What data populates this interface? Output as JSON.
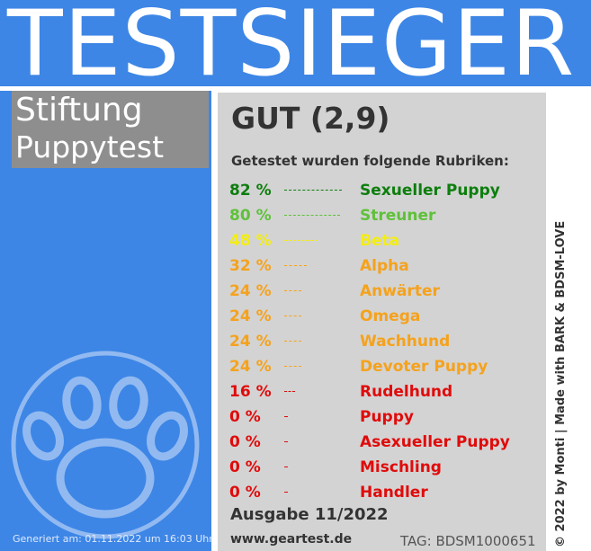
{
  "banner": {
    "title": "TESTSIEGER"
  },
  "brand": {
    "line1": "Stiftung",
    "line2": "Puppytest"
  },
  "result": {
    "grade": "GUT (2,9)",
    "intro": "Getestet wurden folgende Rubriken:"
  },
  "categories": [
    {
      "percent_label": "82 %",
      "name": "Sexueller Puppy",
      "value": 82,
      "color": "#0d7e0d"
    },
    {
      "percent_label": "80 %",
      "name": "Streuner",
      "value": 80,
      "color": "#5fc13a"
    },
    {
      "percent_label": "48 %",
      "name": "Beta",
      "value": 48,
      "color": "#f4ee10"
    },
    {
      "percent_label": "32 %",
      "name": "Alpha",
      "value": 32,
      "color": "#f5a21c"
    },
    {
      "percent_label": "24 %",
      "name": "Anwärter",
      "value": 24,
      "color": "#f5a21c"
    },
    {
      "percent_label": "24 %",
      "name": "Omega",
      "value": 24,
      "color": "#f5a21c"
    },
    {
      "percent_label": "24 %",
      "name": "Wachhund",
      "value": 24,
      "color": "#f5a21c"
    },
    {
      "percent_label": "24 %",
      "name": "Devoter Puppy",
      "value": 24,
      "color": "#f5a21c"
    },
    {
      "percent_label": "16 %",
      "name": "Rudelhund",
      "value": 16,
      "color": "#e00b0b"
    },
    {
      "percent_label": "0 %",
      "name": "Puppy",
      "value": 0,
      "color": "#e00b0b"
    },
    {
      "percent_label": "0 %",
      "name": "Asexueller Puppy",
      "value": 0,
      "color": "#e00b0b"
    },
    {
      "percent_label": "0 %",
      "name": "Mischling",
      "value": 0,
      "color": "#e00b0b"
    },
    {
      "percent_label": "0 %",
      "name": "Handler",
      "value": 0,
      "color": "#e00b0b"
    }
  ],
  "footer": {
    "edition": "Ausgabe 11/2022",
    "website": "www.geartest.de",
    "tag": "TAG: BDSM1000651",
    "generated": "Generiert am: 01.11.2022 um 16:03 Uhr",
    "credit": "© 2022 by Monti | Made with BARK & BDSM-LOVE"
  },
  "colors": {
    "blue": "#3d86e6",
    "gray_box": "#8e8e8e",
    "card": "#d3d3d3"
  },
  "icons": {
    "paw": "paw-icon"
  }
}
